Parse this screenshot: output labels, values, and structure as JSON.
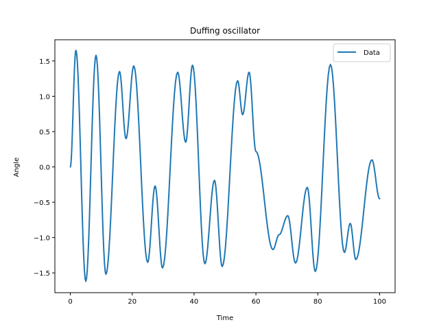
{
  "chart_data": {
    "type": "line",
    "title": "Duffing oscillator",
    "xlabel": "Time",
    "ylabel": "Angle",
    "xlim": [
      -5,
      105
    ],
    "ylim": [
      -1.78,
      1.8
    ],
    "x_ticks": [
      0,
      20,
      40,
      60,
      80,
      100
    ],
    "x_tick_labels": [
      "0",
      "20",
      "40",
      "60",
      "80",
      "100"
    ],
    "y_ticks": [
      -1.5,
      -1.0,
      -0.5,
      0.0,
      0.5,
      1.0,
      1.5
    ],
    "y_tick_labels": [
      "−1.5",
      "−1.0",
      "−0.5",
      "0.0",
      "0.5",
      "1.0",
      "1.5"
    ],
    "grid": false,
    "legend": {
      "position": "upper right",
      "entries": [
        "Data"
      ]
    },
    "colors": {
      "series": "#1f77b4",
      "axes": "#000000",
      "background": "#ffffff"
    },
    "series": [
      {
        "name": "Data",
        "x": [
          0,
          1.8,
          5.0,
          8.3,
          11.5,
          15.9,
          18.0,
          20.5,
          25.0,
          27.4,
          29.8,
          34.7,
          37.3,
          39.5,
          43.5,
          46.6,
          49.1,
          54.1,
          55.7,
          57.8,
          60.0,
          65.5,
          67.5,
          70.3,
          72.8,
          76.6,
          79.2,
          84.1,
          88.6,
          90.5,
          92.3,
          97.5,
          100
        ],
        "y": [
          0.0,
          1.65,
          -1.62,
          1.58,
          -1.52,
          1.35,
          0.4,
          1.43,
          -1.35,
          -0.27,
          -1.43,
          1.34,
          0.35,
          1.44,
          -1.37,
          -0.19,
          -1.41,
          1.22,
          0.74,
          1.34,
          0.22,
          -1.17,
          -0.96,
          -0.69,
          -1.36,
          -0.29,
          -1.48,
          1.45,
          -1.21,
          -0.8,
          -1.31,
          0.1,
          -0.45
        ]
      }
    ]
  }
}
